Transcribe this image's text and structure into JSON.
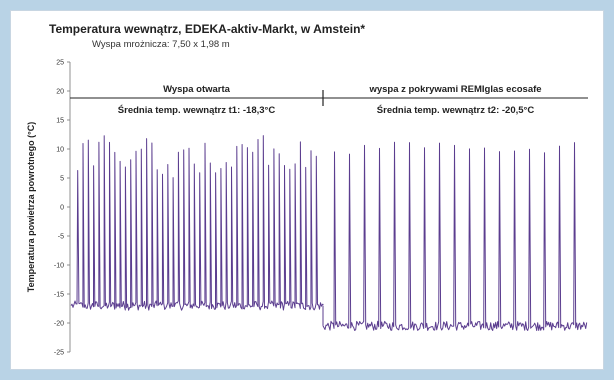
{
  "chart_data": {
    "type": "line",
    "title": "Temperatura wewnątrz, EDEKA-aktiv-Markt, w Amstein*",
    "subtitle": "Wyspa mrożnicza: 7,50 x 1,98 m",
    "ylabel": "Temperatura powietrza powrotnego (°C)",
    "xlabel": "",
    "ylim": [
      -25,
      25
    ],
    "yticks": [
      25,
      20,
      15,
      10,
      5,
      0,
      -5,
      -10,
      -15,
      -20,
      -25
    ],
    "grid": false,
    "segments": [
      {
        "label": "Wyspa otwarta",
        "mean_label": "Średnia temp. wewnątrz t1: -18,3°C",
        "baseline": -17,
        "spike_count": 46,
        "spike_peak_range": [
          5,
          12.5
        ]
      },
      {
        "label": "wyspa z pokrywami REMIglas ecosafe",
        "mean_label": "Średnia temp. wewnątrz t2: -20,5°C",
        "baseline": -20.5,
        "spike_count": 17,
        "spike_peak_range": [
          9,
          11.5
        ]
      }
    ],
    "line_color": "#5b3d8f"
  }
}
